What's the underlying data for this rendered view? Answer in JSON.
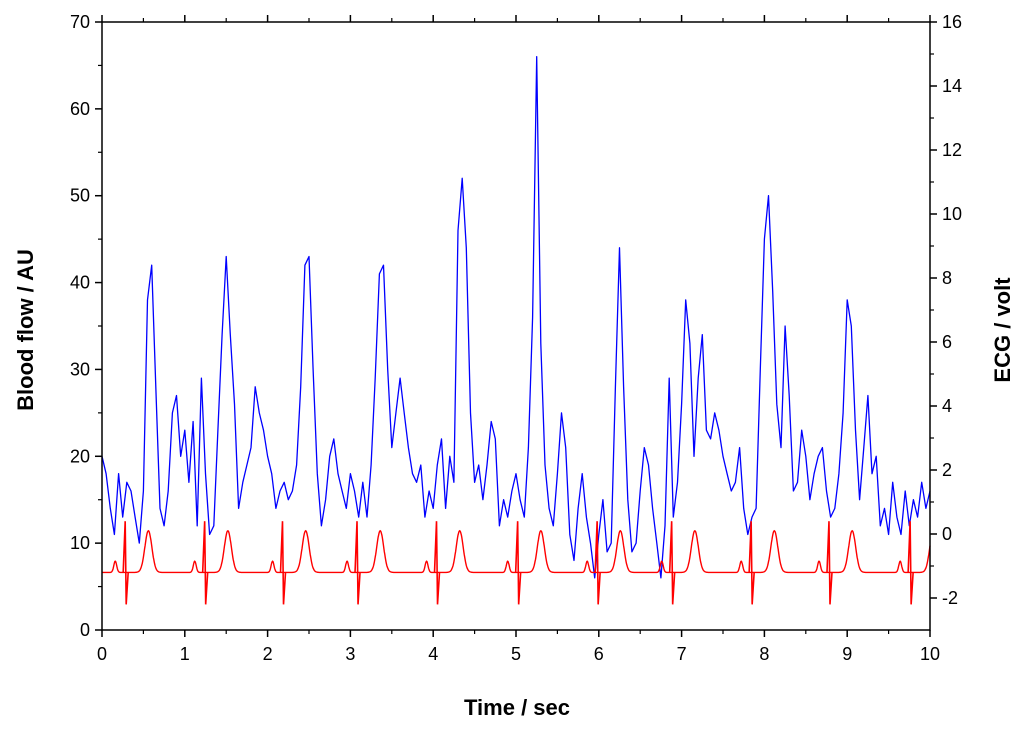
{
  "chart_data": {
    "type": "line",
    "title": "",
    "xlabel": "Time / sec",
    "ylabel": "Blood flow / AU",
    "y2label": "ECG / volt",
    "xlim": [
      0,
      10
    ],
    "ylim": [
      0,
      70
    ],
    "y2lim": [
      -3,
      16
    ],
    "xticks": [
      0,
      1,
      2,
      3,
      4,
      5,
      6,
      7,
      8,
      9,
      10
    ],
    "yticks": [
      0,
      10,
      20,
      30,
      40,
      50,
      60,
      70
    ],
    "y2ticks": [
      -2,
      0,
      2,
      4,
      6,
      8,
      10,
      12,
      14,
      16
    ],
    "grid": false,
    "legend": "none",
    "series": [
      {
        "axis": "left",
        "color": "#0000ff",
        "x": [
          0.0,
          0.05,
          0.1,
          0.15,
          0.2,
          0.25,
          0.3,
          0.35,
          0.4,
          0.45,
          0.5,
          0.55,
          0.6,
          0.65,
          0.7,
          0.75,
          0.8,
          0.85,
          0.9,
          0.95,
          1.0,
          1.05,
          1.1,
          1.15,
          1.2,
          1.25,
          1.3,
          1.35,
          1.4,
          1.45,
          1.5,
          1.55,
          1.6,
          1.65,
          1.7,
          1.75,
          1.8,
          1.85,
          1.9,
          1.95,
          2.0,
          2.05,
          2.1,
          2.15,
          2.2,
          2.25,
          2.3,
          2.35,
          2.4,
          2.45,
          2.5,
          2.55,
          2.6,
          2.65,
          2.7,
          2.75,
          2.8,
          2.85,
          2.9,
          2.95,
          3.0,
          3.05,
          3.1,
          3.15,
          3.2,
          3.25,
          3.3,
          3.35,
          3.4,
          3.45,
          3.5,
          3.55,
          3.6,
          3.65,
          3.7,
          3.75,
          3.8,
          3.85,
          3.9,
          3.95,
          4.0,
          4.05,
          4.1,
          4.15,
          4.2,
          4.25,
          4.3,
          4.35,
          4.4,
          4.45,
          4.5,
          4.55,
          4.6,
          4.65,
          4.7,
          4.75,
          4.8,
          4.85,
          4.9,
          4.95,
          5.0,
          5.05,
          5.1,
          5.15,
          5.2,
          5.25,
          5.3,
          5.35,
          5.4,
          5.45,
          5.5,
          5.55,
          5.6,
          5.65,
          5.7,
          5.75,
          5.8,
          5.85,
          5.9,
          5.95,
          6.0,
          6.05,
          6.1,
          6.15,
          6.2,
          6.25,
          6.3,
          6.35,
          6.4,
          6.45,
          6.5,
          6.55,
          6.6,
          6.65,
          6.7,
          6.75,
          6.8,
          6.85,
          6.9,
          6.95,
          7.0,
          7.05,
          7.1,
          7.15,
          7.2,
          7.25,
          7.3,
          7.35,
          7.4,
          7.45,
          7.5,
          7.55,
          7.6,
          7.65,
          7.7,
          7.75,
          7.8,
          7.85,
          7.9,
          7.95,
          8.0,
          8.05,
          8.1,
          8.15,
          8.2,
          8.25,
          8.3,
          8.35,
          8.4,
          8.45,
          8.5,
          8.55,
          8.6,
          8.65,
          8.7,
          8.75,
          8.8,
          8.85,
          8.9,
          8.95,
          9.0,
          9.05,
          9.1,
          9.15,
          9.2,
          9.25,
          9.3,
          9.35,
          9.4,
          9.45,
          9.5,
          9.55,
          9.6,
          9.65,
          9.7,
          9.75,
          9.8,
          9.85,
          9.9,
          9.95,
          10.0
        ],
        "values": [
          20,
          18,
          14,
          11,
          18,
          13,
          17,
          16,
          13,
          10,
          16,
          38,
          42,
          28,
          14,
          12,
          16,
          25,
          27,
          20,
          23,
          17,
          24,
          12,
          29,
          18,
          11,
          12,
          23,
          34,
          43,
          34,
          26,
          14,
          17,
          19,
          21,
          28,
          25,
          23,
          20,
          18,
          14,
          16,
          17,
          15,
          16,
          19,
          28,
          42,
          43,
          30,
          18,
          12,
          15,
          20,
          22,
          18,
          16,
          14,
          18,
          16,
          13,
          17,
          13,
          19,
          29,
          41,
          42,
          30,
          21,
          25,
          29,
          25,
          21,
          18,
          17,
          19,
          13,
          16,
          14,
          19,
          22,
          14,
          20,
          17,
          46,
          52,
          44,
          25,
          17,
          19,
          15,
          19,
          24,
          22,
          12,
          15,
          13,
          16,
          18,
          15,
          13,
          21,
          36,
          66,
          33,
          19,
          14,
          12,
          18,
          25,
          21,
          11,
          8,
          14,
          18,
          13,
          10,
          6,
          11,
          15,
          9,
          10,
          28,
          44,
          28,
          15,
          9,
          10,
          16,
          21,
          19,
          14,
          10,
          6,
          12,
          29,
          13,
          17,
          26,
          38,
          33,
          20,
          29,
          34,
          23,
          22,
          25,
          23,
          20,
          18,
          16,
          17,
          21,
          14,
          11,
          13,
          14,
          30,
          45,
          50,
          39,
          26,
          21,
          35,
          27,
          16,
          17,
          23,
          20,
          15,
          18,
          20,
          21,
          16,
          13,
          14,
          18,
          25,
          38,
          35,
          23,
          15,
          21,
          27,
          18,
          20,
          12,
          14,
          11,
          17,
          13,
          11,
          16,
          12,
          15,
          13,
          17,
          14,
          16
        ]
      },
      {
        "axis": "right",
        "color": "#ff0000",
        "kind": "ecg",
        "baseline": -1.2,
        "beats": [
          0.28,
          1.24,
          2.18,
          3.08,
          4.04,
          5.02,
          5.98,
          6.88,
          7.84,
          8.78,
          9.76
        ],
        "r_peak": 0.4,
        "s_trough": -2.2,
        "t_wave": 0.7,
        "p_wave": 0.35
      }
    ]
  }
}
